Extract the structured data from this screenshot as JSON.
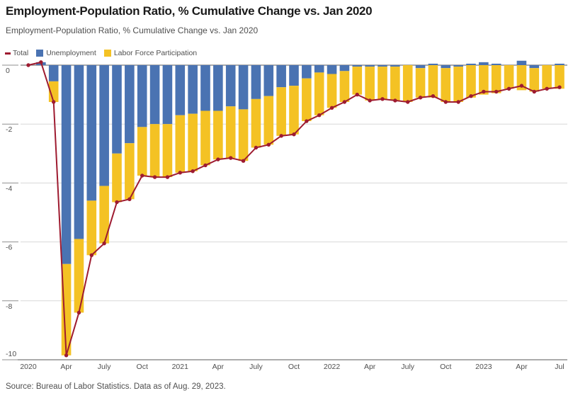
{
  "header": {
    "title": "Employment-Population Ratio, % Cumulative Change vs. Jan 2020",
    "subtitle": "Employment-Population Ratio, % Cumulative Change vs. Jan 2020"
  },
  "legend": {
    "total": "Total",
    "unemployment": "Unemployment",
    "lfp": "Labor Force Participation"
  },
  "footer": {
    "source": "Source: Bureau of Labor Statistics. Data as of Aug. 29, 2023."
  },
  "chart_data": {
    "type": "bar",
    "subtype": "stacked-bars-with-line-overlay",
    "title": "Employment-Population Ratio, % Cumulative Change vs. Jan 2020",
    "xlabel": "",
    "ylabel": "",
    "ylim": [
      -10,
      0.4
    ],
    "grid": true,
    "legend_position": "top-left",
    "yticks": [
      0,
      -2,
      -4,
      -6,
      -8,
      -10
    ],
    "xticks": [
      {
        "index": 0,
        "label": "2020"
      },
      {
        "index": 3,
        "label": "Apr"
      },
      {
        "index": 6,
        "label": "July"
      },
      {
        "index": 9,
        "label": "Oct"
      },
      {
        "index": 12,
        "label": "2021"
      },
      {
        "index": 15,
        "label": "Apr"
      },
      {
        "index": 18,
        "label": "July"
      },
      {
        "index": 21,
        "label": "Oct"
      },
      {
        "index": 24,
        "label": "2022"
      },
      {
        "index": 27,
        "label": "Apr"
      },
      {
        "index": 30,
        "label": "July"
      },
      {
        "index": 33,
        "label": "Oct"
      },
      {
        "index": 36,
        "label": "2023"
      },
      {
        "index": 39,
        "label": "Apr"
      },
      {
        "index": 42,
        "label": "Jul"
      }
    ],
    "categories": [
      "Jan 2020",
      "Feb 2020",
      "Mar 2020",
      "Apr 2020",
      "May 2020",
      "Jun 2020",
      "Jul 2020",
      "Aug 2020",
      "Sep 2020",
      "Oct 2020",
      "Nov 2020",
      "Dec 2020",
      "Jan 2021",
      "Feb 2021",
      "Mar 2021",
      "Apr 2021",
      "May 2021",
      "Jun 2021",
      "Jul 2021",
      "Aug 2021",
      "Sep 2021",
      "Oct 2021",
      "Nov 2021",
      "Dec 2021",
      "Jan 2022",
      "Feb 2022",
      "Mar 2022",
      "Apr 2022",
      "May 2022",
      "Jun 2022",
      "Jul 2022",
      "Aug 2022",
      "Sep 2022",
      "Oct 2022",
      "Nov 2022",
      "Dec 2022",
      "Jan 2023",
      "Feb 2023",
      "Mar 2023",
      "Apr 2023",
      "May 2023",
      "Jun 2023",
      "Jul 2023"
    ],
    "series": [
      {
        "name": "Total",
        "type": "line",
        "color": "#9E1B30",
        "values": [
          0,
          0.1,
          -1.25,
          -9.85,
          -8.4,
          -6.45,
          -6.05,
          -4.65,
          -4.55,
          -3.75,
          -3.8,
          -3.8,
          -3.65,
          -3.6,
          -3.4,
          -3.2,
          -3.15,
          -3.25,
          -2.8,
          -2.7,
          -2.4,
          -2.35,
          -1.9,
          -1.7,
          -1.45,
          -1.25,
          -1.0,
          -1.2,
          -1.15,
          -1.2,
          -1.25,
          -1.1,
          -1.05,
          -1.25,
          -1.25,
          -1.05,
          -0.9,
          -0.9,
          -0.8,
          -0.7,
          -0.9,
          -0.8,
          -0.75
        ]
      },
      {
        "name": "Unemployment",
        "type": "bar",
        "color": "#4A73B2",
        "values": [
          0,
          0.1,
          -0.55,
          -6.75,
          -5.9,
          -4.6,
          -4.1,
          -3.0,
          -2.65,
          -2.1,
          -2.0,
          -2.0,
          -1.7,
          -1.65,
          -1.55,
          -1.55,
          -1.4,
          -1.5,
          -1.15,
          -1.05,
          -0.75,
          -0.7,
          -0.45,
          -0.25,
          -0.3,
          -0.2,
          -0.05,
          -0.05,
          -0.05,
          -0.05,
          0.0,
          -0.1,
          0.05,
          -0.1,
          -0.05,
          0.05,
          0.1,
          0.05,
          0.0,
          0.15,
          -0.1,
          0.0,
          0.05
        ]
      },
      {
        "name": "Labor Force Participation",
        "type": "bar",
        "color": "#F4C224",
        "values": [
          0,
          0,
          -0.7,
          -3.1,
          -2.5,
          -1.85,
          -1.95,
          -1.65,
          -1.9,
          -1.65,
          -1.8,
          -1.8,
          -1.95,
          -1.95,
          -1.85,
          -1.65,
          -1.75,
          -1.75,
          -1.65,
          -1.65,
          -1.65,
          -1.65,
          -1.45,
          -1.45,
          -1.15,
          -1.05,
          -0.95,
          -1.15,
          -1.1,
          -1.15,
          -1.25,
          -1.0,
          -1.1,
          -1.15,
          -1.2,
          -1.1,
          -1.0,
          -0.95,
          -0.8,
          -0.85,
          -0.8,
          -0.8,
          -0.8
        ]
      }
    ]
  }
}
